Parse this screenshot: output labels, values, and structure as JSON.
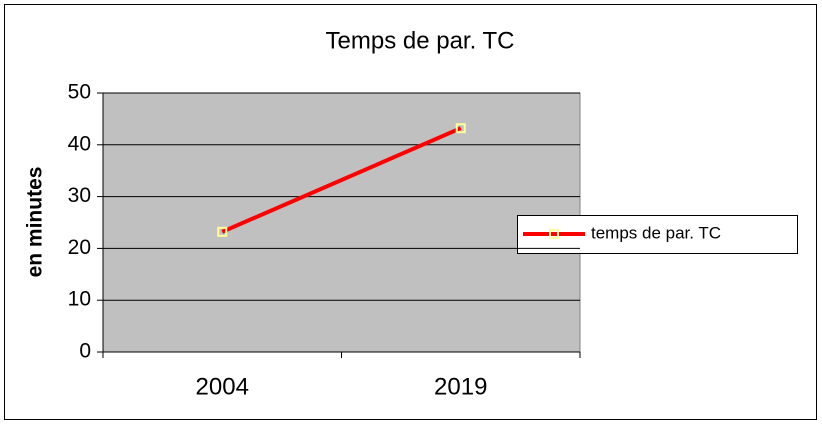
{
  "chart_data": {
    "type": "line",
    "title": "Temps de par. TC",
    "y_label": "en minutes",
    "categories": [
      "2004",
      "2019"
    ],
    "series": [
      {
        "name": "temps de par. TC",
        "color": "#ff0000",
        "marker_color": "#ffff99",
        "values": [
          23.2,
          43.2
        ]
      }
    ],
    "ylim": [
      0,
      50
    ],
    "yticks": [
      0,
      10,
      20,
      30,
      40,
      50
    ],
    "grid": true,
    "legend": "right"
  }
}
